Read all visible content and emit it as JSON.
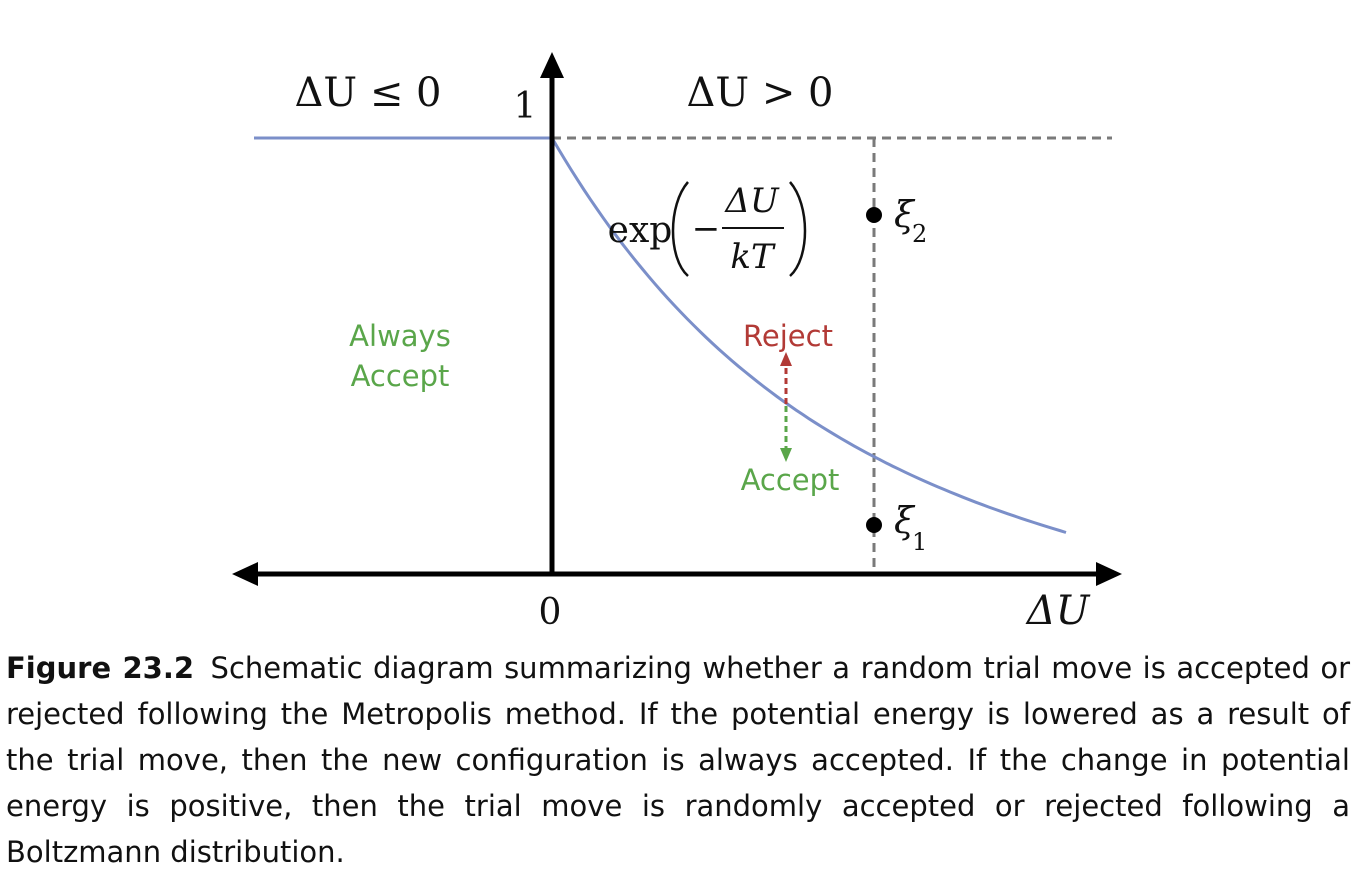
{
  "diagram": {
    "region_left": "ΔU ≤ 0",
    "region_right": "ΔU > 0",
    "y_tick_one": "1",
    "x_tick_zero": "0",
    "x_axis_label": "ΔU",
    "exp_prefix": "exp",
    "exp_minus": "−",
    "exp_numerator": "ΔU",
    "exp_denominator": "kT",
    "always_accept_line1": "Always",
    "always_accept_line2": "Accept",
    "reject_label": "Reject",
    "accept_label": "Accept",
    "xi_symbol": "ξ",
    "xi2_subscript": "2",
    "xi1_subscript": "1",
    "colors": {
      "curve": "#7b8fc9",
      "axis": "#000000",
      "dashed": "#7a7a7a",
      "accept": "#5aa64a",
      "reject": "#b23a36"
    }
  },
  "caption": {
    "figure_number": "Figure 23.2",
    "text": "Schematic diagram summarizing whether a random trial move is accepted or rejected following the Metropolis method. If the potential energy is lowered as a result of the trial move, then the new configuration is always accepted. If the change in potential energy is positive, then the trial move is randomly accepted or rejected following a Boltzmann distribution."
  }
}
